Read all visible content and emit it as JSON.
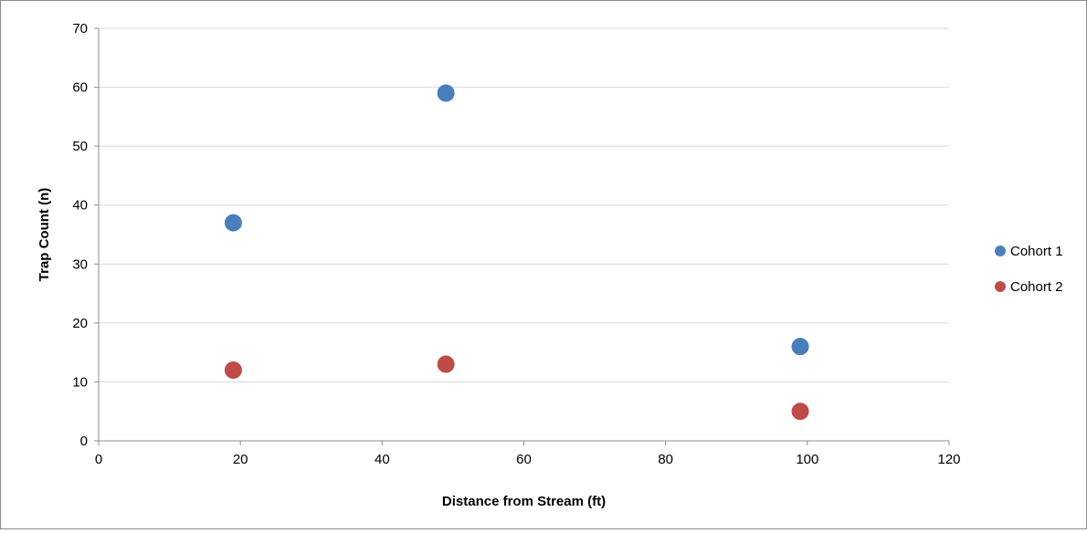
{
  "chart_data": {
    "type": "scatter",
    "title": "",
    "xlabel": "Distance from Stream (ft)",
    "ylabel": "Trap Count (n)",
    "xlim": [
      0,
      120
    ],
    "ylim": [
      0,
      70
    ],
    "x_ticks": [
      0,
      20,
      40,
      60,
      80,
      100,
      120
    ],
    "y_ticks": [
      0,
      10,
      20,
      30,
      40,
      50,
      60,
      70
    ],
    "grid": "horizontal",
    "legend_position": "right",
    "series": [
      {
        "name": "Cohort 1",
        "color": "#4a7ebb",
        "points": [
          {
            "x": 19,
            "y": 37
          },
          {
            "x": 49,
            "y": 59
          },
          {
            "x": 99,
            "y": 16
          }
        ]
      },
      {
        "name": "Cohort 2",
        "color": "#be4b48",
        "points": [
          {
            "x": 19,
            "y": 12
          },
          {
            "x": 49,
            "y": 13
          },
          {
            "x": 99,
            "y": 5
          }
        ]
      }
    ]
  }
}
